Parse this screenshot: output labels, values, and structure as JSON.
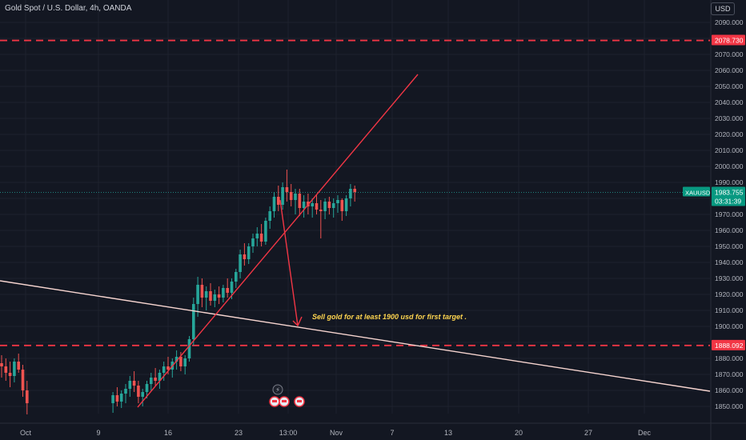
{
  "header": {
    "title": "Gold Spot / U.S. Dollar, 4h, OANDA",
    "currency_button": "USD"
  },
  "colors": {
    "background": "#131722",
    "up": "#26a69a",
    "down": "#ef5350",
    "level_line": "#f23645",
    "trend_red": "#f23645",
    "trend_pink": "#f7d5d0",
    "annotation_text": "#ffd54f",
    "price_label": "#089981"
  },
  "chart_data": {
    "type": "candlestick",
    "symbol": "XAUUSD",
    "title": "Gold Spot / U.S. Dollar, 4h, OANDA",
    "ylim": [
      1845,
      2097
    ],
    "y_ticks": [
      1850,
      1860,
      1870,
      1880,
      1890,
      1900,
      1910,
      1920,
      1930,
      1940,
      1950,
      1960,
      1970,
      1980,
      1990,
      2000,
      2010,
      2020,
      2030,
      2040,
      2050,
      2060,
      2070,
      2080,
      2090
    ],
    "x_tick_labels": [
      "Oct",
      "9",
      "16",
      "23",
      "13:00",
      "Nov",
      "7",
      "13",
      "20",
      "27",
      "Dec"
    ],
    "current_price": {
      "symbol_label": "XAUUSD",
      "value": "1983.755",
      "countdown": "03:31:39"
    },
    "levels": [
      {
        "value": "2078.730",
        "style": "dashed"
      },
      {
        "value": "1888.092",
        "style": "dashed"
      }
    ],
    "annotation": "Sell gold for at least 1900 usd for first target .",
    "candles_ohlc_approx": [
      [
        1877,
        1882,
        1868,
        1875
      ],
      [
        1875,
        1880,
        1866,
        1871
      ],
      [
        1871,
        1878,
        1862,
        1869
      ],
      [
        1869,
        1880,
        1865,
        1878
      ],
      [
        1878,
        1883,
        1871,
        1873
      ],
      [
        1873,
        1876,
        1856,
        1860
      ],
      [
        1860,
        1866,
        1845,
        1852
      ],
      [
        1852,
        1859,
        1846,
        1857
      ],
      [
        1857,
        1862,
        1850,
        1853
      ],
      [
        1853,
        1860,
        1849,
        1858
      ],
      [
        1858,
        1864,
        1852,
        1861
      ],
      [
        1861,
        1869,
        1856,
        1866
      ],
      [
        1866,
        1872,
        1859,
        1863
      ],
      [
        1863,
        1866,
        1852,
        1856
      ],
      [
        1856,
        1861,
        1850,
        1859
      ],
      [
        1859,
        1866,
        1855,
        1864
      ],
      [
        1864,
        1871,
        1860,
        1868
      ],
      [
        1868,
        1874,
        1863,
        1866
      ],
      [
        1866,
        1873,
        1861,
        1871
      ],
      [
        1871,
        1878,
        1866,
        1875
      ],
      [
        1875,
        1881,
        1870,
        1873
      ],
      [
        1873,
        1880,
        1868,
        1878
      ],
      [
        1878,
        1885,
        1873,
        1881
      ],
      [
        1881,
        1884,
        1872,
        1875
      ],
      [
        1875,
        1882,
        1870,
        1880
      ],
      [
        1880,
        1894,
        1878,
        1892
      ],
      [
        1892,
        1918,
        1888,
        1914
      ],
      [
        1914,
        1931,
        1906,
        1926
      ],
      [
        1926,
        1930,
        1912,
        1918
      ],
      [
        1918,
        1925,
        1910,
        1922
      ],
      [
        1922,
        1927,
        1913,
        1916
      ],
      [
        1916,
        1923,
        1912,
        1920
      ],
      [
        1920,
        1925,
        1914,
        1918
      ],
      [
        1918,
        1926,
        1915,
        1924
      ],
      [
        1924,
        1930,
        1918,
        1921
      ],
      [
        1921,
        1930,
        1917,
        1928
      ],
      [
        1928,
        1936,
        1924,
        1934
      ],
      [
        1934,
        1948,
        1930,
        1945
      ],
      [
        1945,
        1952,
        1938,
        1942
      ],
      [
        1942,
        1952,
        1939,
        1950
      ],
      [
        1950,
        1958,
        1946,
        1955
      ],
      [
        1955,
        1962,
        1950,
        1958
      ],
      [
        1958,
        1964,
        1950,
        1953
      ],
      [
        1953,
        1968,
        1951,
        1966
      ],
      [
        1966,
        1975,
        1961,
        1972
      ],
      [
        1972,
        1984,
        1968,
        1981
      ],
      [
        1981,
        1988,
        1972,
        1976
      ],
      [
        1976,
        1990,
        1973,
        1987
      ],
      [
        1987,
        1998,
        1978,
        1984
      ],
      [
        1984,
        1989,
        1975,
        1979
      ],
      [
        1979,
        1986,
        1970,
        1983
      ],
      [
        1983,
        1986,
        1969,
        1974
      ],
      [
        1974,
        1982,
        1968,
        1978
      ],
      [
        1978,
        1983,
        1970,
        1975
      ],
      [
        1975,
        1980,
        1968,
        1977
      ],
      [
        1977,
        1982,
        1970,
        1973
      ],
      [
        1973,
        1979,
        1955,
        1972
      ],
      [
        1972,
        1980,
        1967,
        1978
      ],
      [
        1978,
        1981,
        1970,
        1974
      ],
      [
        1974,
        1980,
        1968,
        1977
      ],
      [
        1977,
        1982,
        1971,
        1979
      ],
      [
        1979,
        1980,
        1966,
        1972
      ],
      [
        1972,
        1982,
        1969,
        1980
      ],
      [
        1980,
        1989,
        1975,
        1986
      ],
      [
        1986,
        1988,
        1978,
        1984
      ]
    ]
  }
}
